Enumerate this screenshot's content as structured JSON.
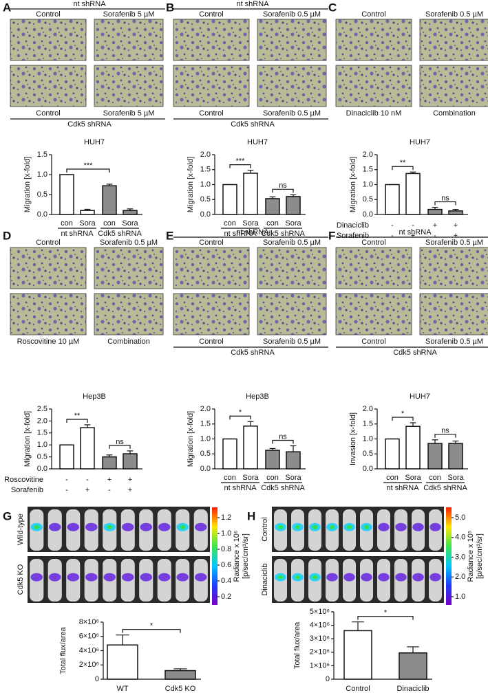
{
  "panels": [
    {
      "letter": "A",
      "header": "nt shRNA",
      "labels_top": [
        "Control",
        "Sorafenib 5 µM"
      ],
      "labels_bottom": [
        "Control",
        "Sorafenib 5 µM"
      ],
      "footer": "Cdk5 shRNA"
    },
    {
      "letter": "B",
      "header": "nt shRNA",
      "labels_top": [
        "Control",
        "Sorafenib 0.5 µM"
      ],
      "labels_bottom": [
        "Control",
        "Sorafenib 0.5 µM"
      ],
      "footer": "Cdk5 shRNA"
    },
    {
      "letter": "C",
      "labels_top": [
        "Control",
        "Sorafenib 0.5 µM"
      ],
      "labels_bottom": [
        "Dinaciclib 10 nM",
        "Combination"
      ]
    },
    {
      "letter": "D",
      "labels_top": [
        "Control",
        "Sorafenib 0.5 µM"
      ],
      "labels_bottom": [
        "Roscovitine 10 µM",
        "Combination"
      ]
    },
    {
      "letter": "E",
      "header": "nt shRNA",
      "labels_top": [
        "Control",
        "Sorafenib 0.5 µM"
      ],
      "labels_bottom": [
        "Control",
        "Sorafenib 0.5 µM"
      ],
      "footer": "Cdk5 shRNA"
    },
    {
      "letter": "F",
      "header": "nt shRNA",
      "labels_top": [
        "Control",
        "Sorafenib 0.5 µM"
      ],
      "labels_bottom": [
        "Control",
        "Sorafenib 0.5 µM"
      ],
      "footer": "Cdk5 shRNA"
    },
    {
      "letter": "G",
      "row_labels": [
        "Wild-type",
        "Cdk5 KO"
      ],
      "colorbar": {
        "ticks": [
          0.2,
          0.4,
          0.6,
          0.8,
          {
            "value": 1,
            "label": "1.0"
          },
          1.2
        ],
        "label": [
          "Radiance x 10⁶",
          "[p/sec/cm³/sr]"
        ]
      }
    },
    {
      "letter": "H",
      "row_labels": [
        "Control",
        "Dinaciclib"
      ],
      "colorbar": {
        "ticks": [
          {
            "value": 1,
            "label": "1.0"
          },
          {
            "value": 2,
            "label": "2.0"
          },
          {
            "value": 3,
            "label": "3.0"
          },
          {
            "value": 4,
            "label": "4.0"
          },
          {
            "value": 5,
            "label": "5.0"
          }
        ],
        "label": [
          "Radiance x 10⁵",
          "[p/sec/cm³/sr]"
        ]
      }
    }
  ],
  "chart_data": [
    {
      "type": "bar",
      "title": "HUH7",
      "y_label": "Migration [x-fold]",
      "categories": [
        "con",
        "Sora",
        "con",
        "Sora"
      ],
      "groups": [
        "nt shRNA",
        "Cdk5 shRNA"
      ],
      "values": [
        1.0,
        0.1,
        0.72,
        0.1
      ],
      "errors": [
        0,
        0.03,
        0.04,
        0.04
      ],
      "colors": [
        "#ffffff",
        "#ffffff",
        "#8c8c8c",
        "#8c8c8c"
      ],
      "ylim": [
        0,
        1.5
      ],
      "yticks": [
        {
          "value": 0,
          "label": "0.0"
        },
        0.5,
        {
          "value": 1,
          "label": "1.0"
        },
        1.5
      ],
      "brackets": [
        {
          "bars": [
            0,
            2
          ],
          "label": "***"
        }
      ]
    },
    {
      "type": "bar",
      "title": "HUH7",
      "y_label": "Migration [x-fold]",
      "categories": [
        "con",
        "Sora",
        "con",
        "Sora"
      ],
      "groups": [
        "nt shRNA",
        "Cdk5 shRNA"
      ],
      "values": [
        1.0,
        1.38,
        0.53,
        0.6
      ],
      "errors": [
        0,
        0.1,
        0.06,
        0.06
      ],
      "colors": [
        "#ffffff",
        "#ffffff",
        "#8c8c8c",
        "#8c8c8c"
      ],
      "ylim": [
        0,
        2
      ],
      "yticks": [
        {
          "value": 0,
          "label": "0.0"
        },
        0.5,
        {
          "value": 1,
          "label": "1.0"
        },
        1.5,
        {
          "value": 2,
          "label": "2.0"
        }
      ],
      "brackets": [
        {
          "bars": [
            0,
            1
          ],
          "label": "***"
        },
        {
          "bars": [
            2,
            3
          ],
          "label": "ns"
        }
      ]
    },
    {
      "type": "bar",
      "title": "HUH7",
      "y_label": "Migration [x-fold]",
      "categories": [
        null,
        null,
        null,
        null
      ],
      "conditions": [
        {
          "name": "Dinaciclib",
          "signs": [
            "-",
            "-",
            "+",
            "+"
          ]
        },
        {
          "name": "Sorafenib",
          "signs": [
            "-",
            "+",
            "-",
            "+"
          ]
        }
      ],
      "values": [
        1.0,
        1.37,
        0.17,
        0.12
      ],
      "errors": [
        0,
        0.05,
        0.07,
        0.05
      ],
      "colors": [
        "#ffffff",
        "#ffffff",
        "#8c8c8c",
        "#8c8c8c"
      ],
      "ylim": [
        0,
        2
      ],
      "yticks": [
        {
          "value": 0,
          "label": "0.0"
        },
        0.5,
        {
          "value": 1,
          "label": "1.0"
        },
        1.5,
        {
          "value": 2,
          "label": "2.0"
        }
      ],
      "brackets": [
        {
          "bars": [
            0,
            1
          ],
          "label": "**"
        },
        {
          "bars": [
            2,
            3
          ],
          "label": "ns"
        }
      ]
    },
    {
      "type": "bar",
      "title": "Hep3B",
      "y_label": "Migration [x-fold]",
      "categories": [
        null,
        null,
        null,
        null
      ],
      "conditions": [
        {
          "name": "Roscovitine",
          "signs": [
            "-",
            "-",
            "+",
            "+"
          ]
        },
        {
          "name": "Sorafenib",
          "signs": [
            "-",
            "+",
            "-",
            "+"
          ]
        }
      ],
      "values": [
        1.0,
        1.72,
        0.5,
        0.63
      ],
      "errors": [
        0,
        0.12,
        0.08,
        0.12
      ],
      "colors": [
        "#ffffff",
        "#ffffff",
        "#8c8c8c",
        "#8c8c8c"
      ],
      "ylim": [
        0,
        2.5
      ],
      "yticks": [
        {
          "value": 0,
          "label": "0.0"
        },
        0.5,
        {
          "value": 1,
          "label": "1.0"
        },
        1.5,
        {
          "value": 2,
          "label": "2.0"
        },
        2.5
      ],
      "brackets": [
        {
          "bars": [
            0,
            1
          ],
          "label": "**"
        },
        {
          "bars": [
            2,
            3
          ],
          "label": "ns"
        }
      ]
    },
    {
      "type": "bar",
      "title": "Hep3B",
      "y_label": "Migration [x-fold]",
      "categories": [
        "con",
        "Sora",
        "con",
        "Sora"
      ],
      "groups": [
        "nt shRNA",
        "Cdk5 shRNA"
      ],
      "values": [
        1.0,
        1.43,
        0.62,
        0.57
      ],
      "errors": [
        0,
        0.15,
        0.06,
        0.2
      ],
      "colors": [
        "#ffffff",
        "#ffffff",
        "#8c8c8c",
        "#8c8c8c"
      ],
      "ylim": [
        0,
        2
      ],
      "yticks": [
        {
          "value": 0,
          "label": "0.0"
        },
        0.5,
        {
          "value": 1,
          "label": "1.0"
        },
        1.5,
        {
          "value": 2,
          "label": "2.0"
        }
      ],
      "brackets": [
        {
          "bars": [
            0,
            1
          ],
          "label": "*"
        },
        {
          "bars": [
            2,
            3
          ],
          "label": "ns"
        }
      ]
    },
    {
      "type": "bar",
      "title": "HUH7",
      "y_label": "Invasion [x-fold]",
      "categories": [
        "con",
        "Sora",
        "con",
        "Sora"
      ],
      "groups": [
        "nt shRNA",
        "Cdk5 shRNA"
      ],
      "values": [
        1.0,
        1.42,
        0.85,
        0.85
      ],
      "errors": [
        0,
        0.12,
        0.12,
        0.08
      ],
      "colors": [
        "#ffffff",
        "#ffffff",
        "#8c8c8c",
        "#8c8c8c"
      ],
      "ylim": [
        0,
        2
      ],
      "yticks": [
        {
          "value": 0,
          "label": "0.0"
        },
        0.5,
        {
          "value": 1,
          "label": "1.0"
        },
        1.5,
        {
          "value": 2,
          "label": "2.0"
        }
      ],
      "brackets": [
        {
          "bars": [
            0,
            1
          ],
          "label": "*"
        },
        {
          "bars": [
            2,
            3
          ],
          "label": "ns"
        }
      ]
    },
    {
      "type": "bar",
      "y_label": "Total flux/area",
      "categories": [
        "WT",
        "Cdk5 KO"
      ],
      "values": [
        4800000,
        1200000
      ],
      "errors": [
        1400000,
        250000
      ],
      "colors": [
        "#ffffff",
        "#8c8c8c"
      ],
      "ylim": [
        0,
        8000000
      ],
      "yticks": [
        0,
        {
          "value": 2000000,
          "label": "2×10⁶"
        },
        {
          "value": 4000000,
          "label": "4×10⁶"
        },
        {
          "value": 6000000,
          "label": "6×10⁶"
        },
        {
          "value": 8000000,
          "label": "8×10⁶"
        }
      ],
      "brackets": [
        {
          "bars": [
            0,
            1
          ],
          "label": "*"
        }
      ]
    },
    {
      "type": "bar",
      "y_label": "Total flux/area",
      "categories": [
        "Control",
        "Dinaciclib"
      ],
      "values": [
        3600000,
        1950000
      ],
      "errors": [
        650000,
        450000
      ],
      "colors": [
        "#ffffff",
        "#8c8c8c"
      ],
      "ylim": [
        0,
        5000000
      ],
      "yticks": [
        0,
        {
          "value": 1000000,
          "label": "1×10⁶"
        },
        {
          "value": 2000000,
          "label": "2×10⁶"
        },
        {
          "value": 3000000,
          "label": "3×10⁶"
        },
        {
          "value": 4000000,
          "label": "4×10⁶"
        },
        {
          "value": 5000000,
          "label": "5×10⁶"
        }
      ],
      "brackets": [
        {
          "bars": [
            0,
            1
          ],
          "label": "*"
        }
      ]
    }
  ]
}
